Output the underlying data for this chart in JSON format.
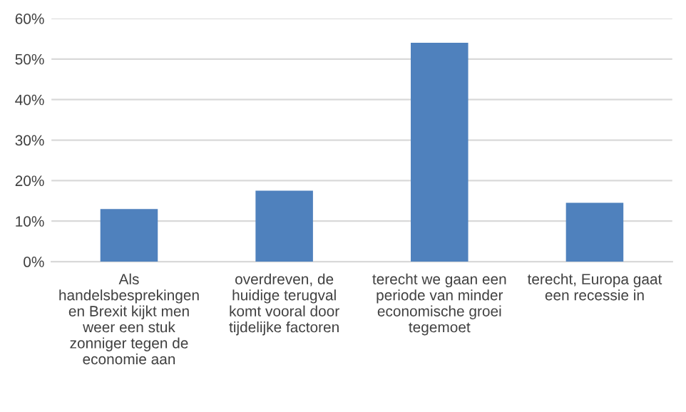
{
  "chart_data": {
    "type": "bar",
    "categories": [
      "Als\nhandelsbesprekingen\nen Brexit kijkt men\nweer een stuk\nzonniger tegen de\neconomie aan",
      "overdreven, de\nhuidige terugval\nkomt vooral door\ntijdelijke factoren",
      "terecht we gaan een\nperiode van minder\neconomische groei\ntegemoet",
      "terecht, Europa gaat\neen recessie in"
    ],
    "values": [
      0.13,
      0.175,
      0.54,
      0.145
    ],
    "color": "#4f81bd",
    "ylim": [
      0,
      0.6
    ],
    "yticks": [
      {
        "value": 0,
        "label": "0%"
      },
      {
        "value": 0.1,
        "label": "10%"
      },
      {
        "value": 0.2,
        "label": "20%"
      },
      {
        "value": 0.3,
        "label": "30%"
      },
      {
        "value": 0.4,
        "label": "40%"
      },
      {
        "value": 0.5,
        "label": "50%"
      },
      {
        "value": 0.6,
        "label": "60%"
      }
    ],
    "grid": "y"
  }
}
